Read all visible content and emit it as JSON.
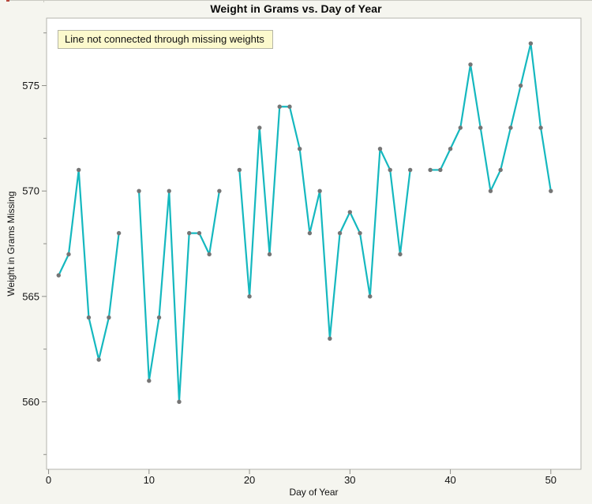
{
  "window": {
    "top_accent_color": "#b5463c"
  },
  "chart_data": {
    "type": "line",
    "title": "Weight in Grams vs. Day of Year",
    "annotation": "Line not connected through missing weights",
    "xlabel": "Day of Year",
    "ylabel": "Weight in Grams Missing",
    "xlim": [
      -0.2,
      53.0
    ],
    "ylim": [
      556.8,
      578.2
    ],
    "x_ticks": [
      0,
      10,
      20,
      30,
      40,
      50
    ],
    "y_ticks": [
      560,
      565,
      570,
      575
    ],
    "y_minor_ticks": [
      557.5,
      562.5,
      567.5,
      572.5,
      577.5
    ],
    "grid": false,
    "legend": "none",
    "line_color": "#15b8bf",
    "marker_color": "#757575",
    "missing_days": [
      8,
      18,
      37
    ],
    "series": [
      {
        "name": "Weight in Grams Missing",
        "points": [
          [
            1,
            566
          ],
          [
            2,
            567
          ],
          [
            3,
            571
          ],
          [
            4,
            564
          ],
          [
            5,
            562
          ],
          [
            6,
            564
          ],
          [
            7,
            568
          ],
          [
            9,
            570
          ],
          [
            10,
            561
          ],
          [
            11,
            564
          ],
          [
            12,
            570
          ],
          [
            13,
            560
          ],
          [
            14,
            568
          ],
          [
            15,
            568
          ],
          [
            16,
            567
          ],
          [
            17,
            570
          ],
          [
            19,
            571
          ],
          [
            20,
            565
          ],
          [
            21,
            573
          ],
          [
            22,
            567
          ],
          [
            23,
            574
          ],
          [
            24,
            574
          ],
          [
            25,
            572
          ],
          [
            26,
            568
          ],
          [
            27,
            570
          ],
          [
            28,
            563
          ],
          [
            29,
            568
          ],
          [
            30,
            569
          ],
          [
            31,
            568
          ],
          [
            32,
            565
          ],
          [
            33,
            572
          ],
          [
            34,
            571
          ],
          [
            35,
            567
          ],
          [
            36,
            571
          ],
          [
            38,
            571
          ],
          [
            39,
            571
          ],
          [
            40,
            572
          ],
          [
            41,
            573
          ],
          [
            42,
            576
          ],
          [
            43,
            573
          ],
          [
            44,
            570
          ],
          [
            45,
            571
          ],
          [
            46,
            573
          ],
          [
            47,
            575
          ],
          [
            48,
            577
          ],
          [
            49,
            573
          ],
          [
            50,
            570
          ]
        ]
      }
    ]
  }
}
